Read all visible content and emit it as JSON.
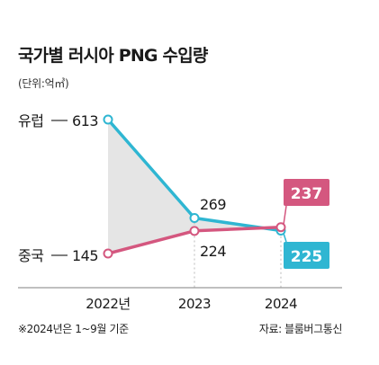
{
  "title": "국가별 러시아 PNG 수입량",
  "unit": "(단위:억㎥)",
  "footnote": "※2024년은 1~9월 기준",
  "source": "자료: 블룸버그통신",
  "colors": {
    "europe": "#2fb6d2",
    "china": "#d4577f",
    "fill": "#dcdcdc",
    "grid": "#b8b8b8"
  },
  "chart_data": {
    "type": "line",
    "x": [
      "2022년",
      "2023",
      "2024"
    ],
    "ylim": [
      0,
      700
    ],
    "series": [
      {
        "name": "유럽",
        "values": [
          613,
          269,
          225
        ],
        "color": "#2fb6d2",
        "labels": [
          "613",
          "269",
          "225"
        ]
      },
      {
        "name": "중국",
        "values": [
          145,
          224,
          237
        ],
        "color": "#d4577f",
        "labels": [
          "145",
          "224",
          "237"
        ]
      }
    ],
    "shaded_region": "between 유럽 and 중국 from 2022 to 2024",
    "grid": "dotted vertical lines at 2023 and 2024",
    "legend": "inline at left of series"
  }
}
